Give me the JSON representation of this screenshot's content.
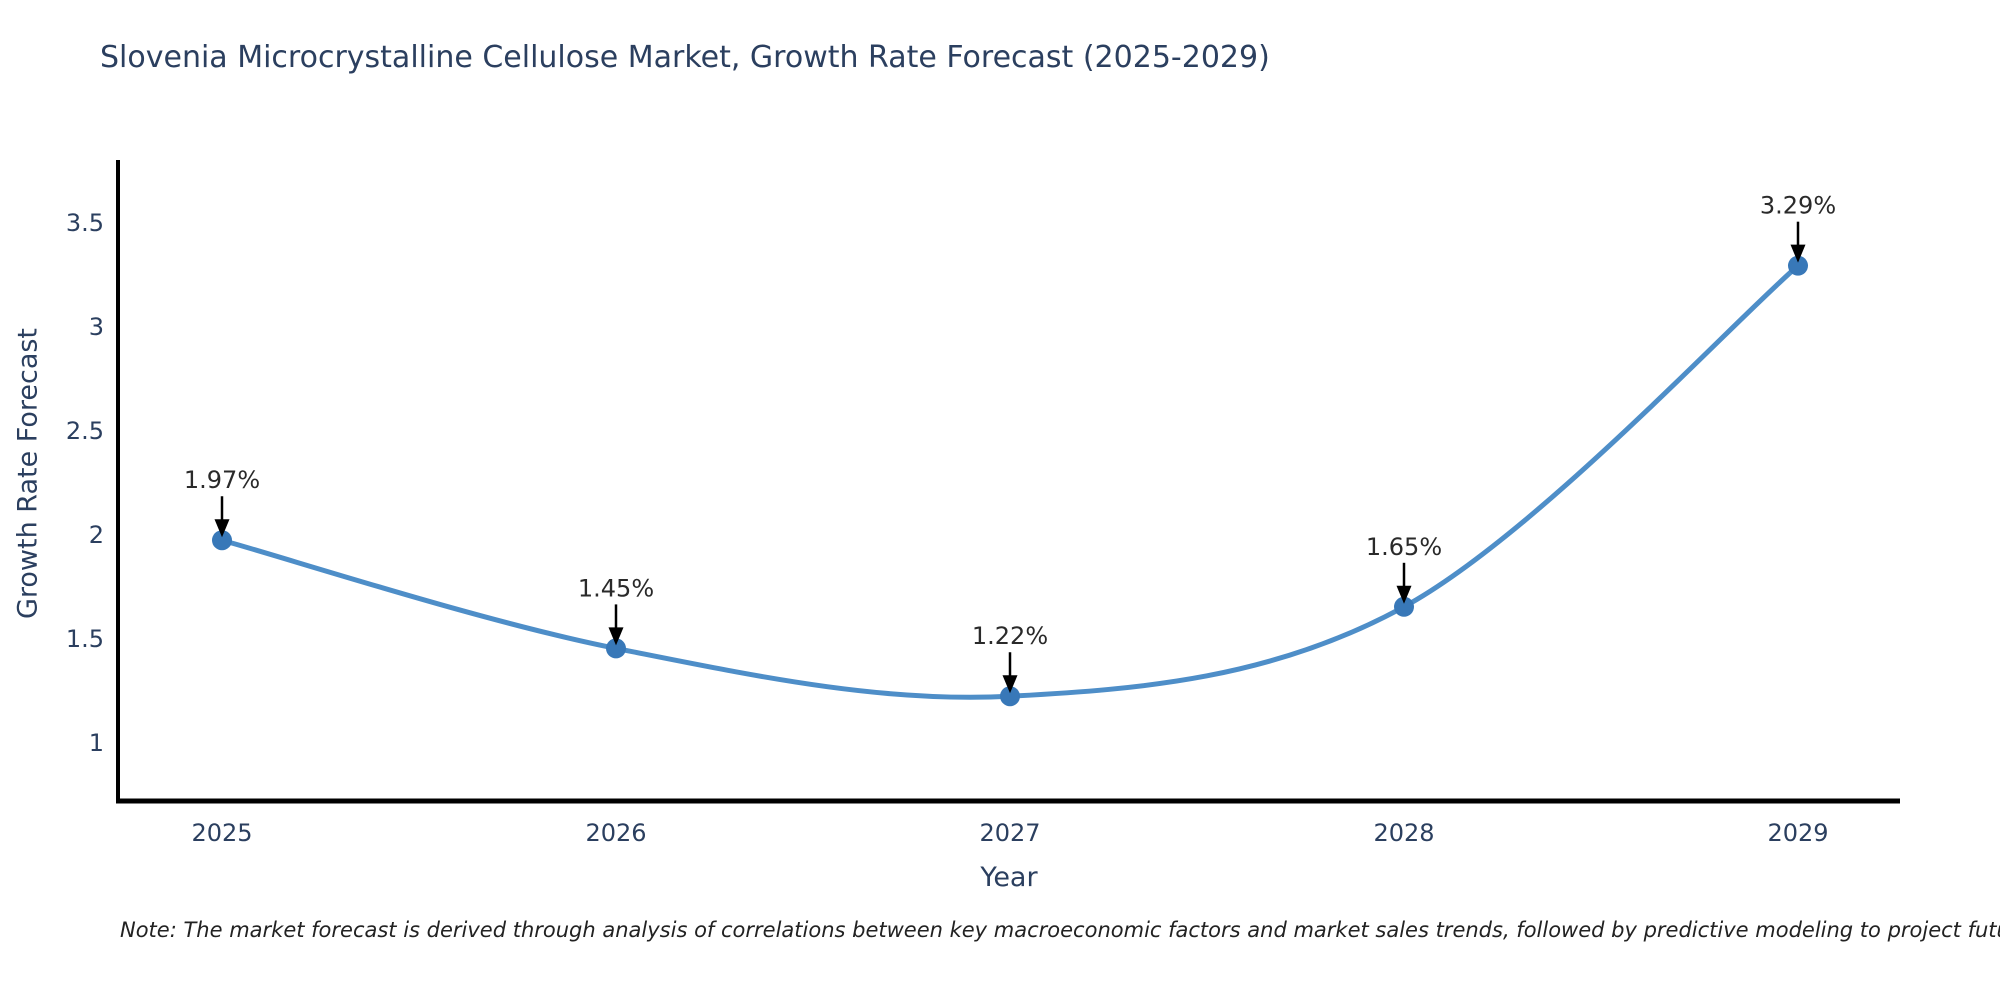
{
  "title": "Slovenia Microcrystalline Cellulose Market, Growth Rate Forecast (2025-2029)",
  "note": "Note: The market forecast is derived through analysis of correlations between key macroeconomic factors and market sales trends, followed by predictive modeling to project future sales.",
  "chart_data": {
    "type": "line",
    "title": "Slovenia Microcrystalline Cellulose Market, Growth Rate Forecast (2025-2029)",
    "xlabel": "Year",
    "ylabel": "Growth Rate Forecast",
    "categories": [
      "2025",
      "2026",
      "2027",
      "2028",
      "2029"
    ],
    "values": [
      1.97,
      1.45,
      1.22,
      1.65,
      3.29
    ],
    "point_labels": [
      "1.97%",
      "1.45%",
      "1.22%",
      "1.65%",
      "3.29%"
    ],
    "y_ticks": [
      3.5,
      3,
      2.5,
      2,
      1.5,
      1
    ],
    "ylim": [
      0.72,
      3.81
    ],
    "line_shape": "spline",
    "markers": true,
    "grid": false,
    "legend_position": "none",
    "colors": {
      "line": "#4e8ec8",
      "marker": "#3878b8",
      "axis": "#000000",
      "axis_text": "#2b3f5f",
      "annotation_text": "#2a2a2a",
      "arrow": "#000000",
      "background": "#ffffff"
    }
  }
}
